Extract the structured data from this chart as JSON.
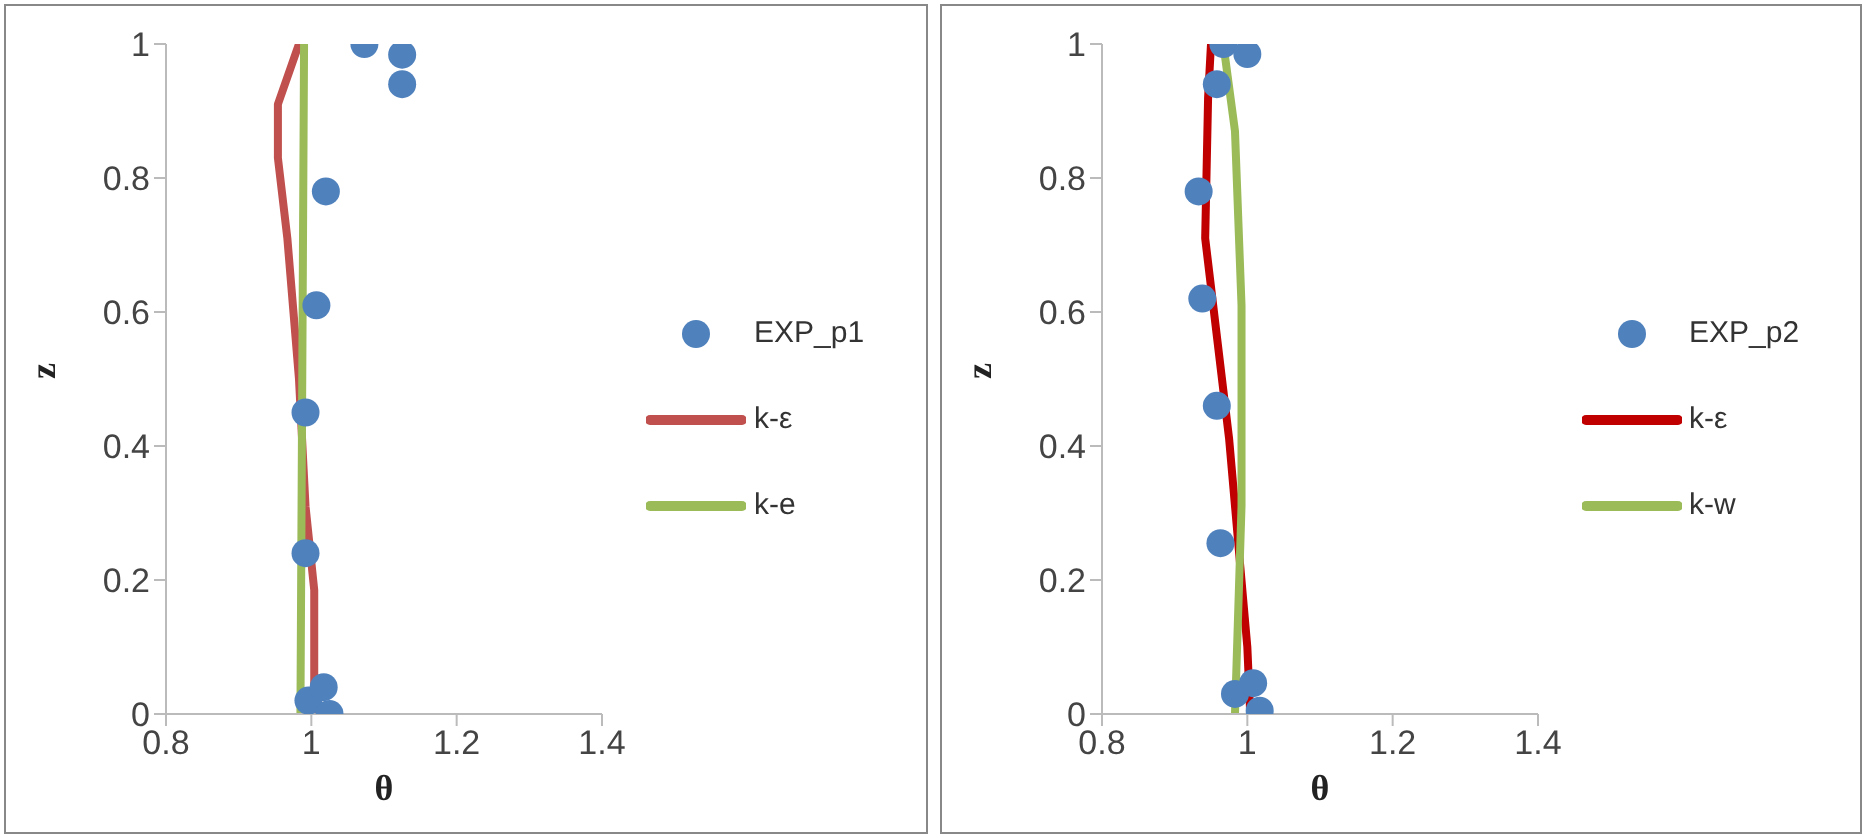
{
  "chart_data": [
    {
      "type": "scatter",
      "xlabel": "θ",
      "ylabel": "z",
      "xlim": [
        0.8,
        1.4
      ],
      "xticks": [
        0.8,
        1,
        1.2,
        1.4
      ],
      "ylim": [
        0,
        1
      ],
      "yticks": [
        0,
        0.2,
        0.4,
        0.6,
        0.8,
        1
      ],
      "legend": "right",
      "grid": false,
      "series": [
        {
          "name": "EXP_p1",
          "marker": "circle",
          "color": "#4f81bd",
          "x": [
            1.073,
            1.125,
            1.125,
            1.02,
            1.007,
            0.992,
            0.992,
            0.996,
            1.017,
            1.025
          ],
          "values": [
            1.0,
            0.984,
            0.94,
            0.78,
            0.61,
            0.45,
            0.24,
            0.02,
            0.04,
            0.0
          ]
        },
        {
          "name": "k-ε",
          "type": "line",
          "line_style": "solid",
          "color": "#c0504d",
          "x": [
            0.983,
            0.954,
            0.954,
            0.967,
            0.983,
            0.992,
            1.004,
            1.004
          ],
          "values": [
            1.0,
            0.91,
            0.83,
            0.71,
            0.5,
            0.31,
            0.185,
            0.0
          ]
        },
        {
          "name": "k-e",
          "type": "line",
          "line_style": "solid",
          "color": "#9bbb59",
          "x": [
            0.99,
            0.985
          ],
          "values": [
            1.0,
            0.0
          ]
        }
      ]
    },
    {
      "type": "scatter",
      "xlabel": "θ",
      "ylabel": "z",
      "xlim": [
        0.8,
        1.4
      ],
      "xticks": [
        0.8,
        1,
        1.2,
        1.4
      ],
      "ylim": [
        0,
        1
      ],
      "yticks": [
        0,
        0.2,
        0.4,
        0.6,
        0.8,
        1
      ],
      "legend": "right",
      "grid": false,
      "series": [
        {
          "name": "EXP_p2",
          "marker": "circle",
          "color": "#4f81bd",
          "x": [
            0.967,
            1.0,
            0.958,
            0.933,
            0.938,
            0.958,
            0.963,
            0.983,
            1.008,
            1.017
          ],
          "values": [
            1.0,
            0.985,
            0.94,
            0.78,
            0.62,
            0.46,
            0.255,
            0.03,
            0.046,
            0.005
          ]
        },
        {
          "name": "k-ε",
          "type": "line",
          "line_style": "solid",
          "color": "#c00000",
          "x": [
            0.95,
            0.946,
            0.942,
            0.975,
            1.0,
            1.004
          ],
          "values": [
            1.0,
            0.92,
            0.71,
            0.41,
            0.1,
            0.0
          ]
        },
        {
          "name": "k-w",
          "type": "line",
          "line_style": "solid",
          "color": "#9bbb59",
          "x": [
            0.967,
            0.983,
            0.992,
            0.992,
            0.983
          ],
          "values": [
            1.0,
            0.87,
            0.61,
            0.31,
            0.0
          ]
        }
      ]
    }
  ]
}
